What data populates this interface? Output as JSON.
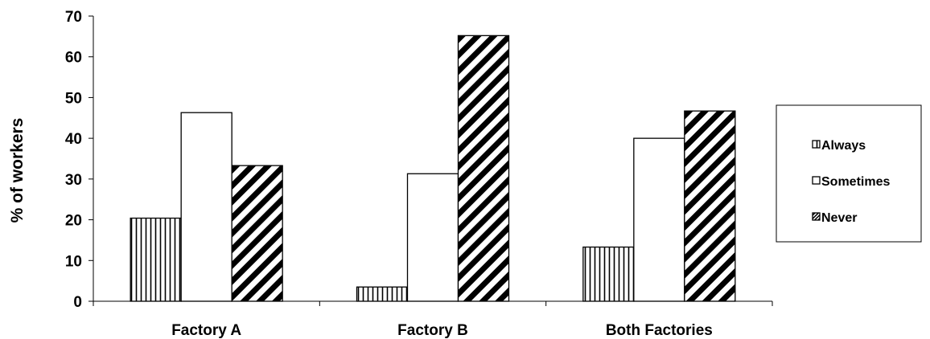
{
  "chart_data": {
    "type": "bar",
    "ylabel": "% of workers",
    "xlabel": "",
    "title": "",
    "categories": [
      "Factory A",
      "Factory B",
      "Both Factories"
    ],
    "series": [
      {
        "name": "Always",
        "values": [
          20.4,
          3.5,
          13.3
        ],
        "pattern": "vertical-stripes"
      },
      {
        "name": "Sometimes",
        "values": [
          46.3,
          31.3,
          40.0
        ],
        "pattern": "solid-white"
      },
      {
        "name": "Never",
        "values": [
          33.3,
          65.2,
          46.7
        ],
        "pattern": "diagonal-stripes"
      }
    ],
    "ylim": [
      0,
      70
    ],
    "yticks": [
      0,
      10,
      20,
      30,
      40,
      50,
      60,
      70
    ],
    "grid": false,
    "legend_position": "right"
  }
}
